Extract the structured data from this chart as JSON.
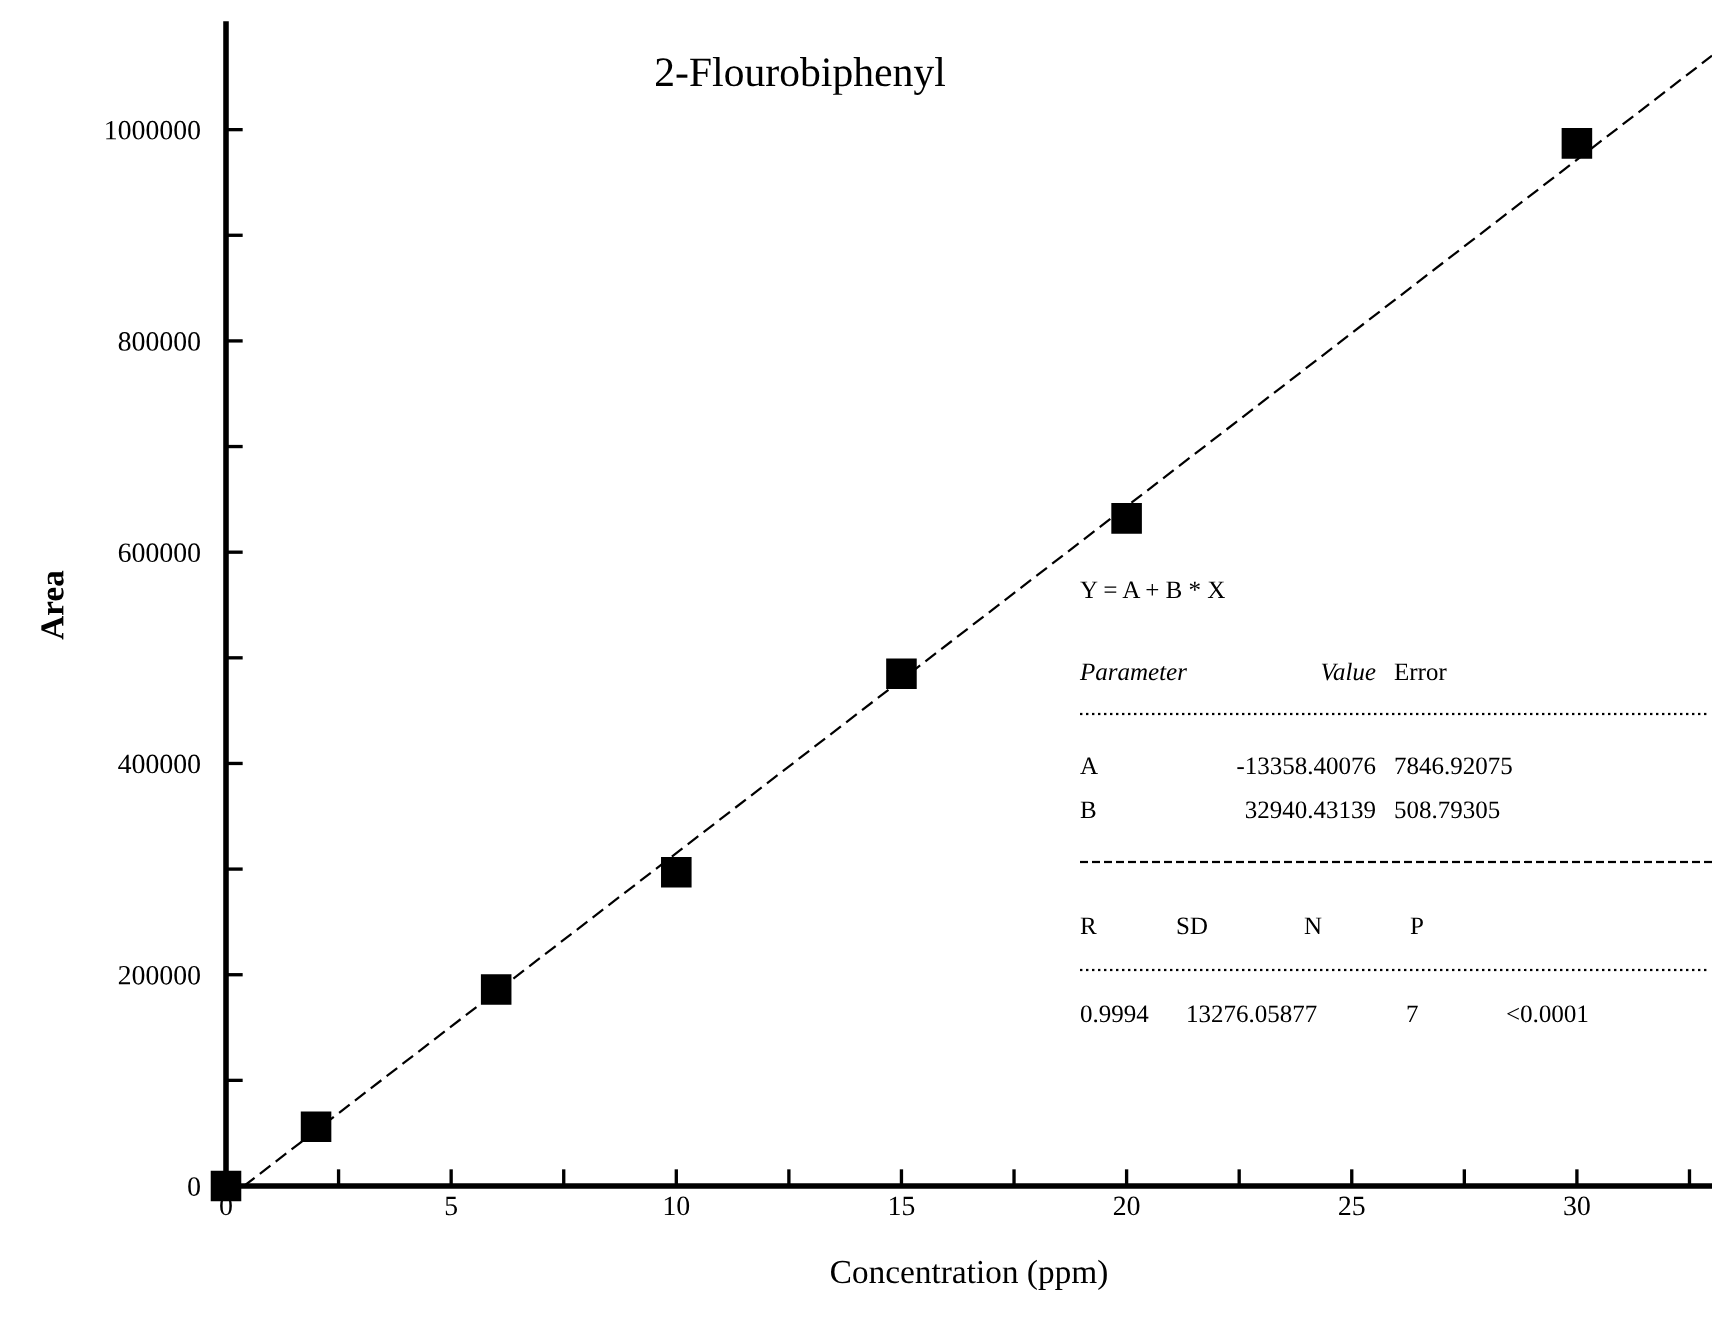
{
  "chart_data": {
    "type": "scatter",
    "title": "2-Flourobiphenyl",
    "xlabel": "Concentration (ppm)",
    "ylabel": "Area",
    "x": [
      0,
      2,
      6,
      10,
      15,
      20,
      30
    ],
    "series": [
      {
        "color": "#000000",
        "marker": "square",
        "values": [
          0,
          56000,
          186000,
          297000,
          485000,
          632000,
          987000
        ]
      },
      {
        "type": "line",
        "color": "#000000",
        "line_style": "dashed",
        "marker": "none",
        "x": [
          0.4,
          33
        ],
        "values": [
          0,
          1070000
        ]
      }
    ],
    "xlim": [
      0,
      33
    ],
    "ylim": [
      0,
      1100000
    ],
    "xticks": [
      0,
      {
        "value": 2.5,
        "label": null
      },
      5,
      {
        "value": 7.5,
        "label": null
      },
      10,
      {
        "value": 12.5,
        "label": null
      },
      15,
      {
        "value": 17.5,
        "label": null
      },
      20,
      {
        "value": 22.5,
        "label": null
      },
      25,
      {
        "value": 27.5,
        "label": null
      },
      30,
      {
        "value": 32.5,
        "label": null
      }
    ],
    "yticks": [
      0,
      {
        "value": 100000,
        "label": null
      },
      200000,
      {
        "value": 300000,
        "label": null
      },
      400000,
      {
        "value": 500000,
        "label": null
      },
      600000,
      {
        "value": 700000,
        "label": null
      },
      800000,
      {
        "value": 900000,
        "label": null
      },
      1000000
    ],
    "grid": false,
    "legend": false,
    "annotations": [
      "Y = A + B * X",
      "Parameter",
      "Value",
      "Error",
      "A",
      "-13358.40076",
      "7846.92075",
      "B",
      "32940.43139",
      "508.79305",
      "R",
      "SD",
      "N",
      "P",
      "0.9994",
      "13276.05877",
      "7",
      "<0.0001"
    ]
  }
}
